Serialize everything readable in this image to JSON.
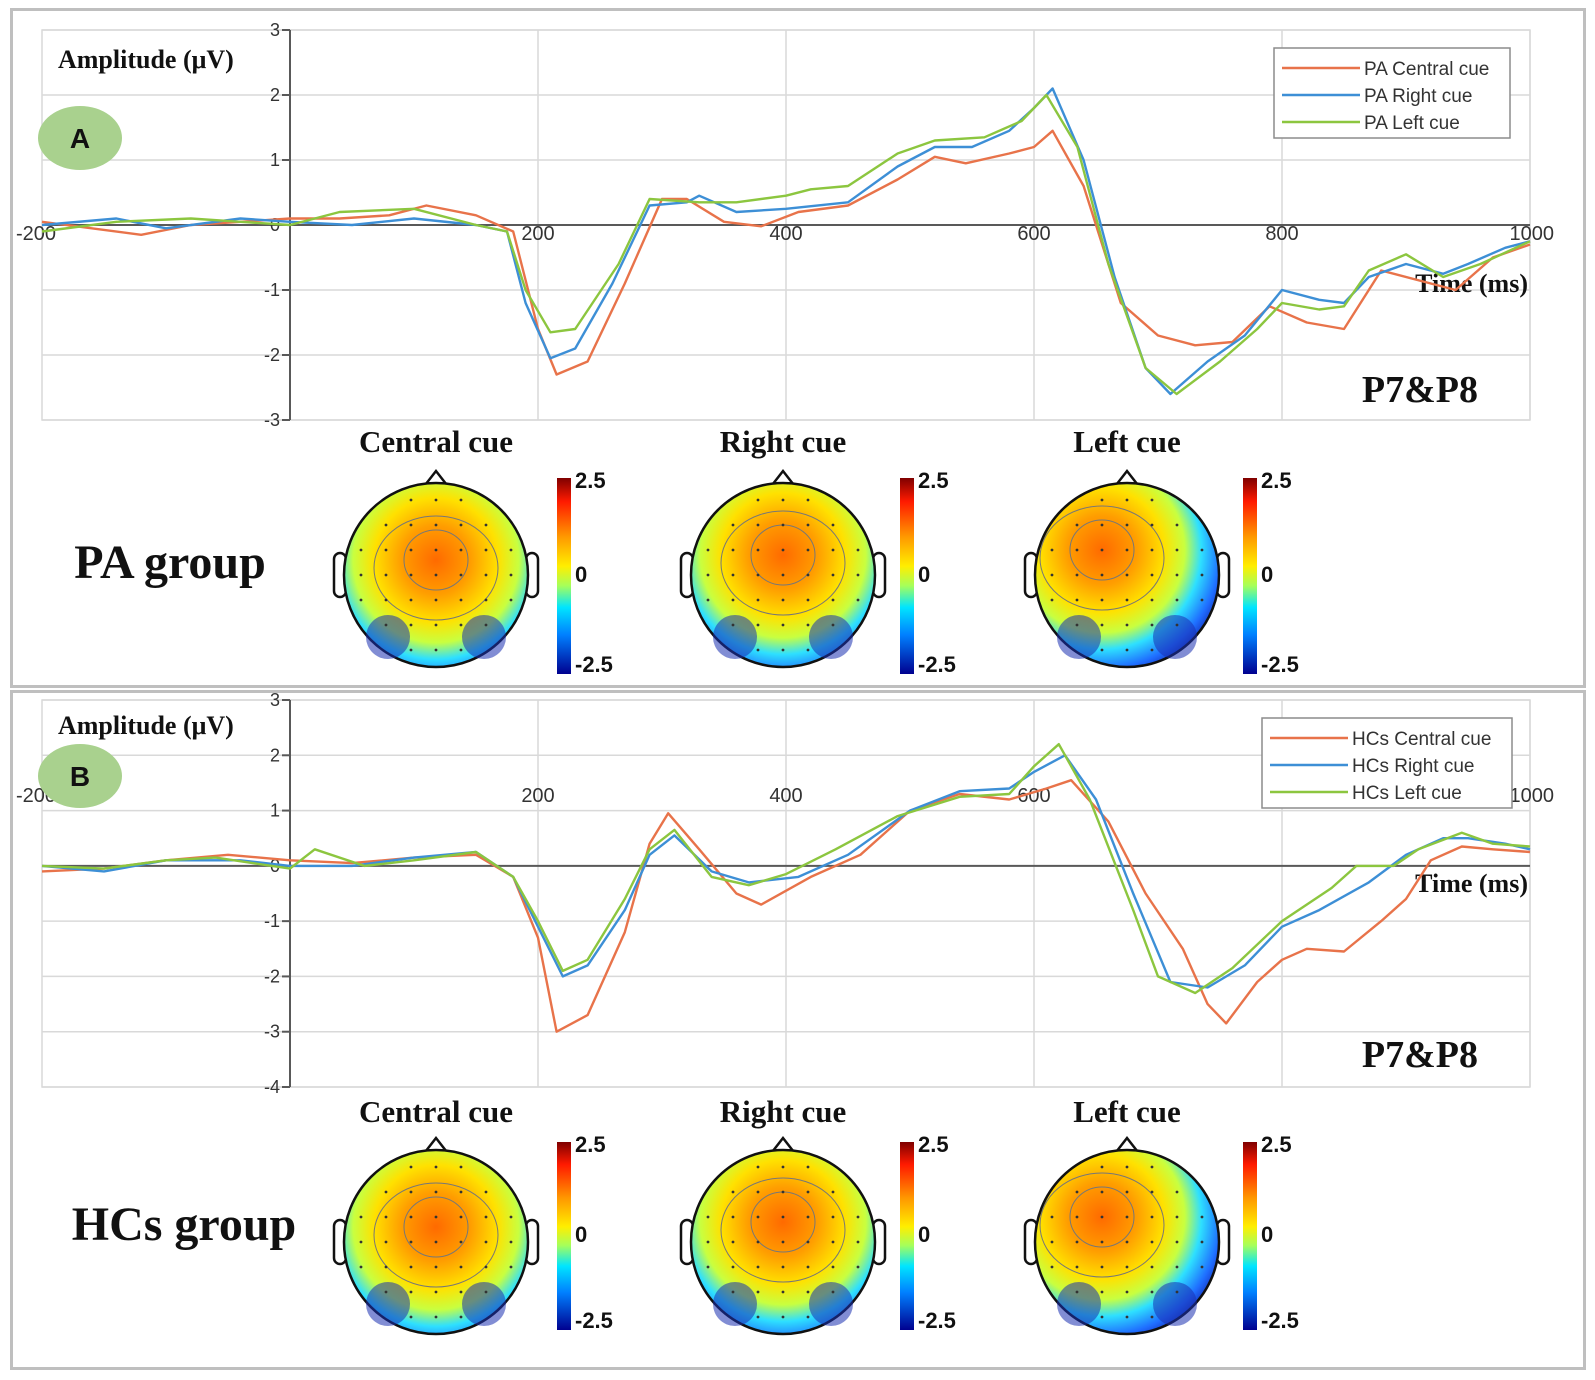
{
  "colors": {
    "central": "#e8734a",
    "right": "#3d8fd6",
    "left": "#8cc63f",
    "badge": "#a9d18e",
    "grid": "#d9d9d9",
    "axis": "#595959"
  },
  "chart_data": [
    {
      "type": "line",
      "panel_label": "A",
      "ylabel": "Amplitude  (μV)",
      "xlabel": "Time (ms)",
      "electrodes": "P7&P8",
      "xlim": [
        -200,
        1000
      ],
      "ylim": [
        -3,
        3
      ],
      "x_ticks": [
        "-200",
        "200",
        "400",
        "600",
        "800",
        "1000"
      ],
      "y_ticks": [
        "3",
        "2",
        "1",
        "0",
        "-1",
        "-2",
        "-3"
      ],
      "group_label": "PA group",
      "topo_titles": [
        "Central cue",
        "Right cue",
        "Left cue"
      ],
      "colorbar_ticks": [
        "2.5",
        "0",
        "-2.5"
      ],
      "series": [
        {
          "name": "PA Central cue",
          "color": "central",
          "points": [
            [
              -200,
              0.05
            ],
            [
              -120,
              -0.15
            ],
            [
              -80,
              0.0
            ],
            [
              -40,
              0.05
            ],
            [
              0,
              0.1
            ],
            [
              40,
              0.1
            ],
            [
              80,
              0.15
            ],
            [
              110,
              0.3
            ],
            [
              150,
              0.15
            ],
            [
              180,
              -0.1
            ],
            [
              200,
              -1.6
            ],
            [
              215,
              -2.3
            ],
            [
              240,
              -2.1
            ],
            [
              270,
              -0.9
            ],
            [
              300,
              0.4
            ],
            [
              320,
              0.4
            ],
            [
              350,
              0.05
            ],
            [
              380,
              -0.02
            ],
            [
              410,
              0.2
            ],
            [
              450,
              0.3
            ],
            [
              490,
              0.7
            ],
            [
              520,
              1.05
            ],
            [
              545,
              0.95
            ],
            [
              580,
              1.1
            ],
            [
              600,
              1.2
            ],
            [
              615,
              1.45
            ],
            [
              640,
              0.6
            ],
            [
              670,
              -1.2
            ],
            [
              700,
              -1.7
            ],
            [
              730,
              -1.85
            ],
            [
              760,
              -1.8
            ],
            [
              790,
              -1.25
            ],
            [
              820,
              -1.5
            ],
            [
              850,
              -1.6
            ],
            [
              880,
              -0.7
            ],
            [
              920,
              -0.9
            ],
            [
              940,
              -1.0
            ],
            [
              970,
              -0.5
            ],
            [
              1000,
              -0.3
            ]
          ]
        },
        {
          "name": "PA Right cue",
          "color": "right",
          "points": [
            [
              -200,
              0.0
            ],
            [
              -140,
              0.1
            ],
            [
              -100,
              -0.05
            ],
            [
              -40,
              0.1
            ],
            [
              0,
              0.05
            ],
            [
              50,
              0.0
            ],
            [
              100,
              0.1
            ],
            [
              150,
              0.0
            ],
            [
              175,
              -0.1
            ],
            [
              190,
              -1.2
            ],
            [
              210,
              -2.05
            ],
            [
              230,
              -1.9
            ],
            [
              260,
              -0.9
            ],
            [
              290,
              0.3
            ],
            [
              320,
              0.35
            ],
            [
              330,
              0.45
            ],
            [
              360,
              0.2
            ],
            [
              400,
              0.25
            ],
            [
              450,
              0.35
            ],
            [
              490,
              0.9
            ],
            [
              520,
              1.2
            ],
            [
              550,
              1.2
            ],
            [
              580,
              1.45
            ],
            [
              600,
              1.8
            ],
            [
              615,
              2.1
            ],
            [
              640,
              1.0
            ],
            [
              665,
              -0.8
            ],
            [
              690,
              -2.2
            ],
            [
              710,
              -2.6
            ],
            [
              740,
              -2.1
            ],
            [
              770,
              -1.7
            ],
            [
              800,
              -1.0
            ],
            [
              830,
              -1.15
            ],
            [
              850,
              -1.2
            ],
            [
              870,
              -0.8
            ],
            [
              900,
              -0.6
            ],
            [
              930,
              -0.75
            ],
            [
              950,
              -0.6
            ],
            [
              980,
              -0.35
            ],
            [
              1000,
              -0.25
            ]
          ]
        },
        {
          "name": "PA Left cue",
          "color": "left",
          "points": [
            [
              -200,
              -0.1
            ],
            [
              -140,
              0.05
            ],
            [
              -80,
              0.1
            ],
            [
              -40,
              0.05
            ],
            [
              0,
              0.0
            ],
            [
              40,
              0.2
            ],
            [
              100,
              0.25
            ],
            [
              150,
              0.0
            ],
            [
              175,
              -0.1
            ],
            [
              190,
              -1.0
            ],
            [
              210,
              -1.65
            ],
            [
              230,
              -1.6
            ],
            [
              265,
              -0.6
            ],
            [
              290,
              0.4
            ],
            [
              330,
              0.35
            ],
            [
              360,
              0.35
            ],
            [
              400,
              0.45
            ],
            [
              420,
              0.55
            ],
            [
              450,
              0.6
            ],
            [
              490,
              1.1
            ],
            [
              520,
              1.3
            ],
            [
              560,
              1.35
            ],
            [
              590,
              1.6
            ],
            [
              610,
              2.0
            ],
            [
              635,
              1.2
            ],
            [
              660,
              -0.6
            ],
            [
              690,
              -2.2
            ],
            [
              715,
              -2.6
            ],
            [
              750,
              -2.1
            ],
            [
              780,
              -1.6
            ],
            [
              800,
              -1.2
            ],
            [
              830,
              -1.3
            ],
            [
              850,
              -1.25
            ],
            [
              870,
              -0.7
            ],
            [
              900,
              -0.45
            ],
            [
              930,
              -0.8
            ],
            [
              960,
              -0.6
            ],
            [
              1000,
              -0.25
            ]
          ]
        }
      ]
    },
    {
      "type": "line",
      "panel_label": "B",
      "ylabel": "Amplitude  (μV)",
      "xlabel": "Time (ms)",
      "electrodes": "P7&P8",
      "xlim": [
        -200,
        1000
      ],
      "ylim": [
        -4,
        3
      ],
      "x_ticks": [
        "-200",
        "200",
        "400",
        "600",
        "800",
        "1000"
      ],
      "y_ticks": [
        "3",
        "2",
        "1",
        "0",
        "-1",
        "-2",
        "-3",
        "-4"
      ],
      "group_label": "HCs group",
      "topo_titles": [
        "Central cue",
        "Right cue",
        "Left cue"
      ],
      "colorbar_ticks": [
        "2.5",
        "0",
        "-2.5"
      ],
      "series": [
        {
          "name": "HCs Central cue",
          "color": "central",
          "points": [
            [
              -200,
              -0.1
            ],
            [
              -150,
              -0.05
            ],
            [
              -100,
              0.1
            ],
            [
              -50,
              0.2
            ],
            [
              0,
              0.1
            ],
            [
              50,
              0.05
            ],
            [
              100,
              0.15
            ],
            [
              150,
              0.2
            ],
            [
              180,
              -0.2
            ],
            [
              200,
              -1.3
            ],
            [
              215,
              -3.0
            ],
            [
              240,
              -2.7
            ],
            [
              270,
              -1.2
            ],
            [
              290,
              0.4
            ],
            [
              305,
              0.95
            ],
            [
              330,
              0.3
            ],
            [
              360,
              -0.5
            ],
            [
              380,
              -0.7
            ],
            [
              420,
              -0.2
            ],
            [
              460,
              0.2
            ],
            [
              500,
              1.0
            ],
            [
              540,
              1.3
            ],
            [
              580,
              1.2
            ],
            [
              610,
              1.4
            ],
            [
              630,
              1.55
            ],
            [
              660,
              0.8
            ],
            [
              690,
              -0.5
            ],
            [
              720,
              -1.5
            ],
            [
              740,
              -2.5
            ],
            [
              755,
              -2.85
            ],
            [
              780,
              -2.1
            ],
            [
              800,
              -1.7
            ],
            [
              820,
              -1.5
            ],
            [
              850,
              -1.55
            ],
            [
              880,
              -1.0
            ],
            [
              900,
              -0.6
            ],
            [
              920,
              0.1
            ],
            [
              945,
              0.35
            ],
            [
              970,
              0.3
            ],
            [
              1000,
              0.25
            ]
          ]
        },
        {
          "name": "HCs Right cue",
          "color": "right",
          "points": [
            [
              -200,
              0.0
            ],
            [
              -150,
              -0.1
            ],
            [
              -100,
              0.1
            ],
            [
              -40,
              0.1
            ],
            [
              0,
              0.0
            ],
            [
              50,
              0.0
            ],
            [
              100,
              0.15
            ],
            [
              150,
              0.25
            ],
            [
              180,
              -0.2
            ],
            [
              200,
              -1.1
            ],
            [
              220,
              -2.0
            ],
            [
              240,
              -1.8
            ],
            [
              270,
              -0.8
            ],
            [
              290,
              0.2
            ],
            [
              310,
              0.55
            ],
            [
              340,
              -0.1
            ],
            [
              370,
              -0.3
            ],
            [
              410,
              -0.2
            ],
            [
              450,
              0.2
            ],
            [
              500,
              1.0
            ],
            [
              540,
              1.35
            ],
            [
              580,
              1.4
            ],
            [
              600,
              1.7
            ],
            [
              625,
              2.0
            ],
            [
              650,
              1.2
            ],
            [
              680,
              -0.5
            ],
            [
              710,
              -2.1
            ],
            [
              740,
              -2.2
            ],
            [
              770,
              -1.8
            ],
            [
              800,
              -1.1
            ],
            [
              830,
              -0.8
            ],
            [
              870,
              -0.3
            ],
            [
              900,
              0.2
            ],
            [
              930,
              0.5
            ],
            [
              950,
              0.5
            ],
            [
              980,
              0.4
            ],
            [
              1000,
              0.3
            ]
          ]
        },
        {
          "name": "HCs Left cue",
          "color": "left",
          "points": [
            [
              -200,
              0.0
            ],
            [
              -150,
              -0.05
            ],
            [
              -100,
              0.1
            ],
            [
              -60,
              0.15
            ],
            [
              0,
              -0.05
            ],
            [
              20,
              0.3
            ],
            [
              60,
              0.0
            ],
            [
              100,
              0.1
            ],
            [
              150,
              0.25
            ],
            [
              180,
              -0.2
            ],
            [
              200,
              -1.0
            ],
            [
              220,
              -1.9
            ],
            [
              240,
              -1.7
            ],
            [
              270,
              -0.6
            ],
            [
              290,
              0.3
            ],
            [
              310,
              0.65
            ],
            [
              340,
              -0.2
            ],
            [
              370,
              -0.35
            ],
            [
              400,
              -0.15
            ],
            [
              440,
              0.3
            ],
            [
              490,
              0.9
            ],
            [
              540,
              1.25
            ],
            [
              580,
              1.3
            ],
            [
              600,
              1.8
            ],
            [
              620,
              2.2
            ],
            [
              645,
              1.2
            ],
            [
              680,
              -0.8
            ],
            [
              700,
              -2.0
            ],
            [
              730,
              -2.3
            ],
            [
              760,
              -1.85
            ],
            [
              800,
              -1.0
            ],
            [
              840,
              -0.4
            ],
            [
              860,
              0.0
            ],
            [
              890,
              0.0
            ],
            [
              910,
              0.3
            ],
            [
              945,
              0.6
            ],
            [
              970,
              0.4
            ],
            [
              1000,
              0.35
            ]
          ]
        }
      ]
    }
  ]
}
